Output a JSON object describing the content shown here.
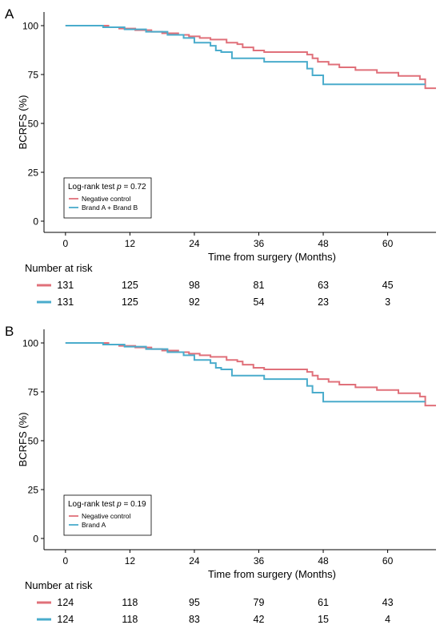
{
  "chart_data": [
    {
      "type": "line",
      "panel_label": "A",
      "xlabel": "Time from surgery (Months)",
      "ylabel": "BCRFS (%)",
      "xlim": [
        -4,
        69
      ],
      "ylim": [
        0,
        100
      ],
      "xticks": [
        0,
        12,
        24,
        36,
        48,
        60
      ],
      "yticks": [
        0,
        25,
        50,
        75,
        100
      ],
      "grid": false,
      "legend_title_prefix": "Log-rank test ",
      "legend_title_p": "p",
      "legend_title_suffix": " = 0.72",
      "legend_position": "bottom-left",
      "series": [
        {
          "name": "Negative control",
          "color": "#e0707a",
          "x": [
            0,
            6,
            8,
            10,
            13,
            16,
            18,
            21,
            23,
            25,
            27,
            30,
            32,
            33,
            35,
            37,
            44,
            45,
            46,
            47,
            49,
            51,
            54,
            58,
            62,
            66,
            67,
            69
          ],
          "y": [
            100,
            100,
            99.2,
            98.5,
            97.7,
            96.9,
            96.1,
            95.3,
            94.5,
            93.7,
            92.9,
            91.3,
            90.5,
            88.9,
            87.3,
            86.5,
            86.5,
            85.2,
            83.3,
            81.5,
            80.1,
            78.7,
            77.3,
            75.9,
            74.3,
            72.6,
            68.0,
            68.0
          ],
          "end_censor": true
        },
        {
          "name": "Brand A + Brand B",
          "color": "#4aaccc",
          "x": [
            0,
            5,
            7,
            11,
            15,
            19,
            22,
            24,
            27,
            28,
            29,
            31,
            33,
            37,
            44,
            45,
            46,
            48,
            67
          ],
          "y": [
            100,
            100,
            99.2,
            98.1,
            96.9,
            95.3,
            93.7,
            91.3,
            89.7,
            87.3,
            86.5,
            83.3,
            83.3,
            81.5,
            81.5,
            78.0,
            74.6,
            70.0,
            70.0
          ]
        }
      ],
      "risk_table": {
        "title": "Number at risk",
        "times": [
          0,
          12,
          24,
          36,
          48,
          60
        ],
        "rows": [
          {
            "color": "#e0707a",
            "values": [
              131,
              125,
              98,
              81,
              63,
              45
            ]
          },
          {
            "color": "#4aaccc",
            "values": [
              131,
              125,
              92,
              54,
              23,
              3
            ]
          }
        ]
      }
    },
    {
      "type": "line",
      "panel_label": "B",
      "xlabel": "Time from surgery (Months)",
      "ylabel": "BCRFS (%)",
      "xlim": [
        -4,
        69
      ],
      "ylim": [
        0,
        100
      ],
      "xticks": [
        0,
        12,
        24,
        36,
        48,
        60
      ],
      "yticks": [
        0,
        25,
        50,
        75,
        100
      ],
      "grid": false,
      "legend_title_prefix": "Log-rank test ",
      "legend_title_p": "p",
      "legend_title_suffix": " = 0.19",
      "legend_position": "bottom-left",
      "series": [
        {
          "name": "Negative control",
          "color": "#e0707a",
          "x": [
            0,
            6,
            8,
            10,
            13,
            16,
            18,
            21,
            23,
            25,
            27,
            30,
            32,
            33,
            35,
            37,
            44,
            45,
            46,
            47,
            49,
            51,
            54,
            58,
            62,
            66,
            67,
            69
          ],
          "y": [
            100,
            100,
            99.2,
            98.5,
            97.7,
            96.9,
            96.1,
            95.3,
            94.5,
            93.7,
            92.9,
            91.3,
            90.5,
            88.9,
            87.3,
            86.5,
            86.5,
            85.2,
            83.3,
            81.5,
            80.1,
            78.7,
            77.3,
            75.9,
            74.3,
            72.6,
            68.0,
            68.0
          ],
          "end_censor": true
        },
        {
          "name": "Brand A",
          "color": "#4aaccc",
          "x": [
            0,
            5,
            7,
            11,
            15,
            19,
            22,
            24,
            27,
            28,
            29,
            31,
            33,
            37,
            44,
            45,
            46,
            48,
            67
          ],
          "y": [
            100,
            100,
            99.2,
            98.1,
            96.9,
            95.3,
            93.7,
            91.3,
            89.7,
            87.3,
            86.5,
            83.3,
            83.3,
            81.5,
            81.5,
            78.0,
            74.6,
            70.0,
            70.0
          ]
        }
      ],
      "risk_table": {
        "title": "Number at risk",
        "times": [
          0,
          12,
          24,
          36,
          48,
          60
        ],
        "rows": [
          {
            "color": "#e0707a",
            "values": [
              124,
              118,
              95,
              79,
              61,
              43
            ]
          },
          {
            "color": "#4aaccc",
            "values": [
              124,
              118,
              83,
              42,
              15,
              4
            ]
          }
        ]
      }
    }
  ]
}
